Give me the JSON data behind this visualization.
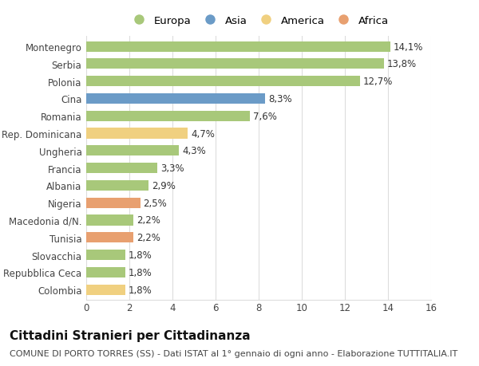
{
  "categories": [
    "Montenegro",
    "Serbia",
    "Polonia",
    "Cina",
    "Romania",
    "Rep. Dominicana",
    "Ungheria",
    "Francia",
    "Albania",
    "Nigeria",
    "Macedonia d/N.",
    "Tunisia",
    "Slovacchia",
    "Repubblica Ceca",
    "Colombia"
  ],
  "values": [
    14.1,
    13.8,
    12.7,
    8.3,
    7.6,
    4.7,
    4.3,
    3.3,
    2.9,
    2.5,
    2.2,
    2.2,
    1.8,
    1.8,
    1.8
  ],
  "labels": [
    "14,1%",
    "13,8%",
    "12,7%",
    "8,3%",
    "7,6%",
    "4,7%",
    "4,3%",
    "3,3%",
    "2,9%",
    "2,5%",
    "2,2%",
    "2,2%",
    "1,8%",
    "1,8%",
    "1,8%"
  ],
  "continents": [
    "Europa",
    "Europa",
    "Europa",
    "Asia",
    "Europa",
    "America",
    "Europa",
    "Europa",
    "Europa",
    "Africa",
    "Europa",
    "Africa",
    "Europa",
    "Europa",
    "America"
  ],
  "colors": {
    "Europa": "#a8c87a",
    "Asia": "#6b9bc7",
    "America": "#f0d080",
    "Africa": "#e8a070"
  },
  "legend_order": [
    "Europa",
    "Asia",
    "America",
    "Africa"
  ],
  "xlim": [
    0,
    16
  ],
  "xticks": [
    0,
    2,
    4,
    6,
    8,
    10,
    12,
    14,
    16
  ],
  "background_color": "#ffffff",
  "grid_color": "#dddddd",
  "bar_height": 0.6,
  "title": "Cittadini Stranieri per Cittadinanza",
  "subtitle": "COMUNE DI PORTO TORRES (SS) - Dati ISTAT al 1° gennaio di ogni anno - Elaborazione TUTTITALIA.IT",
  "title_fontsize": 11,
  "subtitle_fontsize": 8,
  "label_fontsize": 8.5,
  "tick_fontsize": 8.5,
  "legend_fontsize": 9.5
}
